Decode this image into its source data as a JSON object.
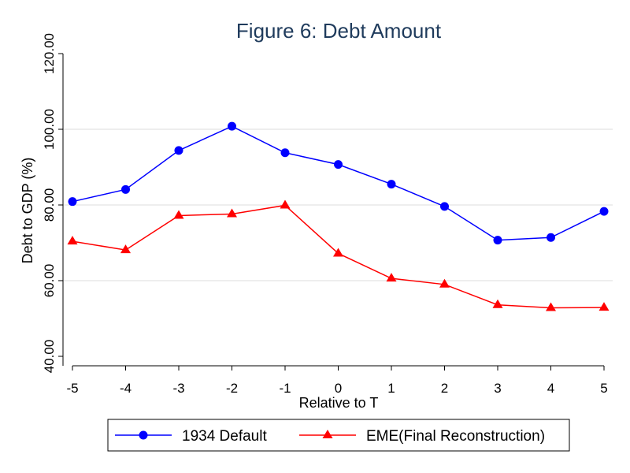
{
  "chart_data": {
    "type": "line",
    "title": "Figure 6: Debt Amount",
    "xlabel": "Relative to T",
    "ylabel": "Debt to GDP (%)",
    "x": [
      -5,
      -4,
      -3,
      -2,
      -1,
      0,
      1,
      2,
      3,
      4,
      5
    ],
    "x_tick_labels": [
      "-5",
      "-4",
      "-3",
      "-2",
      "-1",
      "0",
      "1",
      "2",
      "3",
      "4",
      "5"
    ],
    "y_ticks": [
      40,
      60,
      80,
      100,
      120
    ],
    "y_tick_labels": [
      "40.00",
      "60.00",
      "80.00",
      "100.00",
      "120.00"
    ],
    "ylim": [
      40,
      120
    ],
    "xlim": [
      -5,
      5
    ],
    "grid": "horizontal",
    "legend_position": "bottom",
    "series": [
      {
        "name": "1934 Default",
        "color": "#0000ff",
        "marker": "circle",
        "values": [
          80.9,
          84.1,
          94.4,
          100.8,
          93.8,
          90.7,
          85.5,
          79.6,
          70.7,
          71.4,
          78.3
        ]
      },
      {
        "name": "EME(Final Reconstruction)",
        "color": "#ff0000",
        "marker": "triangle",
        "values": [
          70.4,
          68.1,
          77.2,
          77.6,
          79.9,
          67.2,
          60.6,
          59.0,
          53.6,
          52.8,
          52.9
        ]
      }
    ]
  }
}
